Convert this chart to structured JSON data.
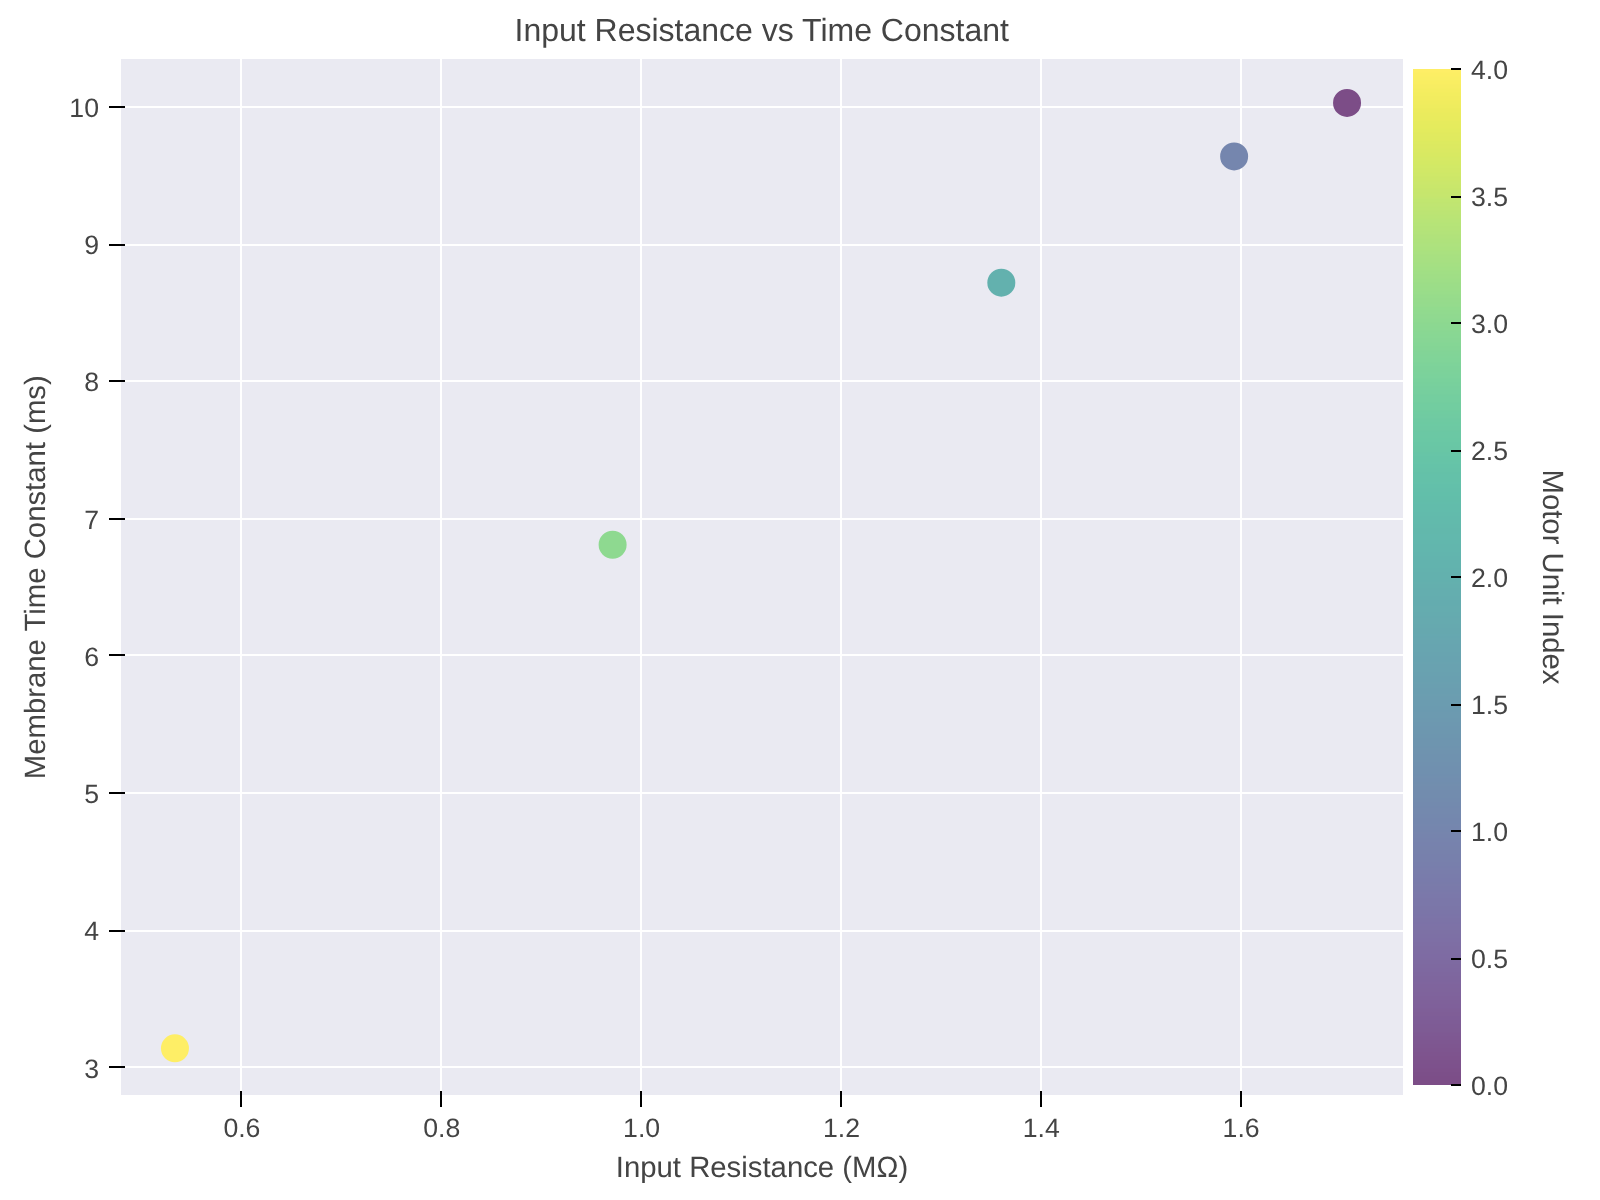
{
  "chart_data": {
    "type": "scatter",
    "title": "Input Resistance vs Time Constant",
    "xlabel": "Input Resistance (MΩ)",
    "ylabel": "Membrane Time Constant (ms)",
    "clabel": "Motor Unit Index",
    "x": [
      0.533,
      0.971,
      1.36,
      1.593,
      1.706
    ],
    "values": [
      3.14,
      6.81,
      8.72,
      9.64,
      10.03
    ],
    "cvalues": [
      4,
      3,
      2,
      1,
      0
    ],
    "xlim": [
      0.479,
      1.762
    ],
    "ylim": [
      2.8,
      10.35
    ],
    "xticks": [
      {
        "value": 0.6,
        "label": "0.6"
      },
      {
        "value": 0.8,
        "label": "0.8"
      },
      {
        "value": 1.0,
        "label": "1.0"
      },
      {
        "value": 1.2,
        "label": "1.2"
      },
      {
        "value": 1.4,
        "label": "1.4"
      },
      {
        "value": 1.6,
        "label": "1.6"
      }
    ],
    "yticks": [
      3,
      4,
      5,
      6,
      7,
      8,
      9,
      10
    ],
    "clim": [
      0,
      4
    ],
    "cticks": [
      {
        "value": 0,
        "label": "0.0"
      },
      {
        "value": 0.5,
        "label": "0.5"
      },
      {
        "value": 1,
        "label": "1.0"
      },
      {
        "value": 1.5,
        "label": "1.5"
      },
      {
        "value": 2,
        "label": "2.0"
      },
      {
        "value": 2.5,
        "label": "2.5"
      },
      {
        "value": 3,
        "label": "3.0"
      },
      {
        "value": 3.5,
        "label": "3.5"
      },
      {
        "value": 4,
        "label": "4.0"
      }
    ],
    "grid": true,
    "marker": "circle"
  }
}
